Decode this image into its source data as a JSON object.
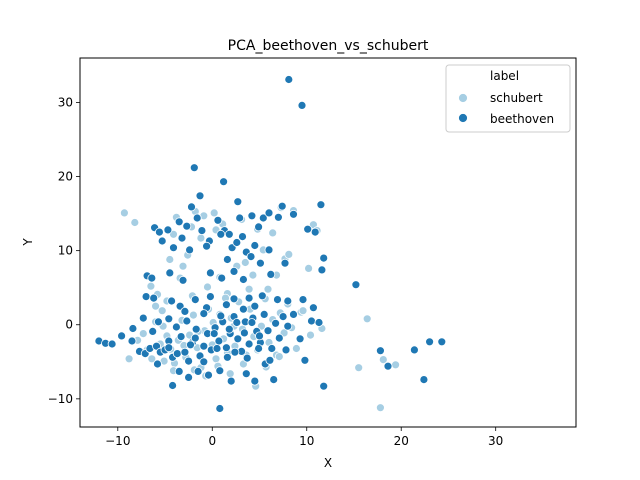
{
  "chart_data": {
    "type": "scatter",
    "title": "PCA_beethoven_vs_schubert",
    "xlabel": "X",
    "ylabel": "Y",
    "xlim": [
      -14,
      38.5
    ],
    "ylim": [
      -13.8,
      36
    ],
    "xticks": [
      -10,
      0,
      10,
      20,
      30
    ],
    "yticks": [
      -10,
      0,
      10,
      20,
      30
    ],
    "grid": false,
    "legend": {
      "title": "label",
      "placement": "top-right",
      "entries": [
        "schubert",
        "beethoven"
      ]
    },
    "series": [
      {
        "name": "schubert",
        "color": "#a6cee3",
        "points": [
          [
            -9.3,
            15.1
          ],
          [
            -8.2,
            13.8
          ],
          [
            -6.5,
            5.2
          ],
          [
            -6,
            2.5
          ],
          [
            -5.8,
            4.1
          ],
          [
            -5.2,
            -0.2
          ],
          [
            -4.8,
            3.2
          ],
          [
            -4.5,
            8.8
          ],
          [
            -4.1,
            12.2
          ],
          [
            -3.8,
            14.5
          ],
          [
            -3.4,
            6.3
          ],
          [
            -3.1,
            7.9
          ],
          [
            -2.6,
            9.4
          ],
          [
            -2.2,
            13.2
          ],
          [
            -1.8,
            15.3
          ],
          [
            -1.2,
            11.7
          ],
          [
            -0.9,
            14.7
          ],
          [
            -0.5,
            5.1
          ],
          [
            0.2,
            15.1
          ],
          [
            0.4,
            12.8
          ],
          [
            0.8,
            6.4
          ],
          [
            1.1,
            13.6
          ],
          [
            1.6,
            4.2
          ],
          [
            2.2,
            10.5
          ],
          [
            2.6,
            7.9
          ],
          [
            3.1,
            14.2
          ],
          [
            3.5,
            8.4
          ],
          [
            4.3,
            6.7
          ],
          [
            4.8,
            12.9
          ],
          [
            5.4,
            10.1
          ],
          [
            5.9,
            4.8
          ],
          [
            6.4,
            12.4
          ],
          [
            6.8,
            6.7
          ],
          [
            7.3,
            15.8
          ],
          [
            7.7,
            8.9
          ],
          [
            8.1,
            9.5
          ],
          [
            8.6,
            15.4
          ],
          [
            9.4,
            1.7
          ],
          [
            10.2,
            7.6
          ],
          [
            10.7,
            13.5
          ],
          [
            11.1,
            12.7
          ],
          [
            11.6,
            -0.5
          ],
          [
            16.4,
            0.8
          ],
          [
            15.5,
            -5.8
          ],
          [
            17.8,
            -11.2
          ],
          [
            18.1,
            -4.7
          ],
          [
            19.4,
            -5.4
          ],
          [
            -7.3,
            -1.2
          ],
          [
            -6.9,
            -3.4
          ],
          [
            -6.4,
            -4.6
          ],
          [
            -6,
            0.4
          ],
          [
            -5.5,
            -2.6
          ],
          [
            -5.1,
            -4.9
          ],
          [
            -4.8,
            -1.5
          ],
          [
            -4.4,
            -3.3
          ],
          [
            -4,
            -5.2
          ],
          [
            -3.6,
            -2.1
          ],
          [
            -3.2,
            0.6
          ],
          [
            -2.8,
            -4.4
          ],
          [
            -2.4,
            -1.4
          ],
          [
            -2,
            1.3
          ],
          [
            -1.6,
            -3.1
          ],
          [
            -1.2,
            -5.8
          ],
          [
            -0.8,
            -0.8
          ],
          [
            -0.4,
            2.1
          ],
          [
            0,
            -2.7
          ],
          [
            0.4,
            -4.6
          ],
          [
            0.8,
            1.4
          ],
          [
            1.2,
            -1.9
          ],
          [
            1.6,
            -3.8
          ],
          [
            2,
            0.9
          ],
          [
            2.4,
            -2.9
          ],
          [
            2.8,
            3.1
          ],
          [
            3.2,
            -0.6
          ],
          [
            3.6,
            -4.1
          ],
          [
            4,
            2.1
          ],
          [
            4.4,
            -1.6
          ],
          [
            4.8,
            -3.4
          ],
          [
            5.2,
            -0.2
          ],
          [
            5.6,
            3.5
          ],
          [
            6,
            -2.4
          ],
          [
            6.4,
            0.7
          ],
          [
            6.8,
            -4.1
          ],
          [
            7.2,
            1.6
          ],
          [
            7.6,
            -1.1
          ],
          [
            8,
            2.8
          ],
          [
            8.4,
            -0.4
          ],
          [
            8.9,
            -3.2
          ],
          [
            9.6,
            1.9
          ],
          [
            10.4,
            -1.4
          ],
          [
            -8.8,
            -4.6
          ],
          [
            -7.9,
            -2.1
          ],
          [
            -5.3,
            1.9
          ],
          [
            -4.1,
            -6.2
          ],
          [
            -3,
            -2.8
          ],
          [
            -1.9,
            -6.1
          ],
          [
            -0.7,
            -6.9
          ],
          [
            0.6,
            -5.6
          ],
          [
            1.9,
            -6.6
          ],
          [
            3.3,
            -5.3
          ],
          [
            4.6,
            -8.3
          ],
          [
            5.7,
            -5.7
          ],
          [
            7.1,
            -4.3
          ],
          [
            -2.1,
            3.9
          ],
          [
            1.4,
            3.6
          ],
          [
            3.9,
            4.8
          ],
          [
            -1.5,
            -0.9
          ],
          [
            0.1,
            0.3
          ],
          [
            2.3,
            -0.2
          ]
        ]
      },
      {
        "name": "beethoven",
        "color": "#1f78b4",
        "points": [
          [
            8.1,
            33.1
          ],
          [
            9.5,
            29.6
          ],
          [
            -1.9,
            21.2
          ],
          [
            1.2,
            19.3
          ],
          [
            -1.3,
            17.4
          ],
          [
            2.7,
            16.6
          ],
          [
            -2.2,
            15.9
          ],
          [
            7.4,
            16
          ],
          [
            11.5,
            16.2
          ],
          [
            -6.1,
            13.1
          ],
          [
            -5.6,
            12.5
          ],
          [
            -4.7,
            12.8
          ],
          [
            -3.5,
            13.9
          ],
          [
            -2.7,
            13.3
          ],
          [
            -1.6,
            14.4
          ],
          [
            -0.3,
            11.3
          ],
          [
            0.6,
            14.1
          ],
          [
            1.3,
            12.7
          ],
          [
            1.8,
            12.2
          ],
          [
            2.9,
            14.4
          ],
          [
            3.2,
            11.9
          ],
          [
            4.2,
            14.7
          ],
          [
            4.9,
            13.2
          ],
          [
            5.4,
            14.4
          ],
          [
            6,
            15.1
          ],
          [
            7,
            14.5
          ],
          [
            8.6,
            14.9
          ],
          [
            10.9,
            12.5
          ],
          [
            -5.3,
            11.3
          ],
          [
            -4.1,
            10.4
          ],
          [
            -3.2,
            11.7
          ],
          [
            -2.4,
            10.1
          ],
          [
            -1.1,
            12.7
          ],
          [
            -0.6,
            10.6
          ],
          [
            0.9,
            12.2
          ],
          [
            2.1,
            10.4
          ],
          [
            2.6,
            11.1
          ],
          [
            3.6,
            9.8
          ],
          [
            4.5,
            10.7
          ],
          [
            6,
            10.1
          ],
          [
            7.7,
            8.3
          ],
          [
            10.1,
            12.9
          ],
          [
            11.8,
            9
          ],
          [
            11.6,
            7.4
          ],
          [
            6.2,
            6.8
          ],
          [
            -6.9,
            6.6
          ],
          [
            -6.4,
            6.3
          ],
          [
            -4.5,
            7
          ],
          [
            -3.1,
            6
          ],
          [
            -0.2,
            7
          ],
          [
            1,
            6.3
          ],
          [
            1.6,
            8.8
          ],
          [
            2.3,
            7.2
          ],
          [
            3.3,
            6.1
          ],
          [
            4.1,
            9.2
          ],
          [
            5.1,
            8.3
          ],
          [
            -7,
            3.8
          ],
          [
            -6.2,
            3.6
          ],
          [
            -4.3,
            3.2
          ],
          [
            -3.4,
            2.5
          ],
          [
            -2.9,
            1.8
          ],
          [
            -1.8,
            3.4
          ],
          [
            -0.6,
            2.3
          ],
          [
            -0.2,
            3.8
          ],
          [
            1.5,
            2.7
          ],
          [
            2.3,
            3.5
          ],
          [
            3.3,
            2.1
          ],
          [
            3.9,
            3.6
          ],
          [
            4.5,
            2.5
          ],
          [
            5.3,
            3.9
          ],
          [
            6.9,
            3.4
          ],
          [
            8,
            3.2
          ],
          [
            9.6,
            3.4
          ],
          [
            10.7,
            2.3
          ],
          [
            15.2,
            5.4
          ],
          [
            -12,
            -2.2
          ],
          [
            -11.3,
            -2.5
          ],
          [
            -10.6,
            -2.6
          ],
          [
            -9.6,
            -1.5
          ],
          [
            -8.5,
            -2.2
          ],
          [
            -7.7,
            -3.6
          ],
          [
            -7.1,
            -3.9
          ],
          [
            -6.6,
            -3.2
          ],
          [
            -5.9,
            -2.9
          ],
          [
            -5.5,
            -3.7
          ],
          [
            -5,
            -3.4
          ],
          [
            -4.6,
            -2.2
          ],
          [
            -4.2,
            -4.4
          ],
          [
            -3.7,
            -3.9
          ],
          [
            -3.3,
            -1.6
          ],
          [
            -2.9,
            -3.7
          ],
          [
            -2.5,
            -4.9
          ],
          [
            -2.1,
            -2.4
          ],
          [
            -1.7,
            -0.6
          ],
          [
            -1.3,
            -4.2
          ],
          [
            -0.9,
            -2.9
          ],
          [
            -0.5,
            -1.2
          ],
          [
            -0.1,
            -3.4
          ],
          [
            0.3,
            -0.4
          ],
          [
            0.7,
            -2.2
          ],
          [
            1.1,
            0.4
          ],
          [
            1.5,
            -3.1
          ],
          [
            1.9,
            -1.2
          ],
          [
            2.3,
            1.1
          ],
          [
            2.7,
            -1.9
          ],
          [
            3.1,
            -3.6
          ],
          [
            3.5,
            0.4
          ],
          [
            3.9,
            -2.6
          ],
          [
            4.3,
            0.9
          ],
          [
            4.7,
            -0.9
          ],
          [
            5.1,
            -2.4
          ],
          [
            5.5,
            1.4
          ],
          [
            5.9,
            -0.8
          ],
          [
            6.3,
            -3.2
          ],
          [
            6.7,
            0.2
          ],
          [
            7.1,
            -1.8
          ],
          [
            7.5,
            1.1
          ],
          [
            8,
            -0.2
          ],
          [
            8.6,
            1.4
          ],
          [
            9.3,
            -1.9
          ],
          [
            9.8,
            -4.8
          ],
          [
            10.5,
            0.5
          ],
          [
            11.3,
            0.3
          ],
          [
            -8.4,
            -0.5
          ],
          [
            -7.3,
            0.9
          ],
          [
            -6.3,
            -0.9
          ],
          [
            -5.7,
            0.4
          ],
          [
            -4.6,
            0.8
          ],
          [
            -3.8,
            -0.3
          ],
          [
            -2.7,
            0.5
          ],
          [
            -1.8,
            -1.8
          ],
          [
            -0.9,
            1.5
          ],
          [
            0.2,
            -1.2
          ],
          [
            0.9,
            1.2
          ],
          [
            1.8,
            -0.6
          ],
          [
            2.6,
            0.3
          ],
          [
            3.4,
            -1.1
          ],
          [
            4.2,
            0.3
          ],
          [
            5,
            -1.5
          ],
          [
            -5.8,
            -5.3
          ],
          [
            -4.2,
            -8.2
          ],
          [
            -3.5,
            -6.3
          ],
          [
            -2.5,
            -7.1
          ],
          [
            -1.5,
            -6.3
          ],
          [
            -0.4,
            -6.8
          ],
          [
            0.8,
            -6.2
          ],
          [
            0.8,
            -11.3
          ],
          [
            2,
            -7.6
          ],
          [
            3.6,
            -6.6
          ],
          [
            4.5,
            -7.6
          ],
          [
            5.6,
            -5.3
          ],
          [
            6.5,
            -7.4
          ],
          [
            11.8,
            -8.3
          ],
          [
            17.8,
            -3.5
          ],
          [
            18.6,
            -5.6
          ],
          [
            21.4,
            -3.4
          ],
          [
            22.4,
            -7.4
          ],
          [
            23,
            -2.3
          ],
          [
            24.3,
            -2.3
          ],
          [
            -4.6,
            -3.1
          ],
          [
            -2.3,
            -2.7
          ],
          [
            -0.9,
            -5
          ],
          [
            0.5,
            -3.2
          ],
          [
            1.6,
            -4.4
          ],
          [
            2.4,
            -3.7
          ],
          [
            3.7,
            -4.5
          ],
          [
            4.9,
            -3.2
          ],
          [
            6.1,
            -4.8
          ],
          [
            7.8,
            -3.4
          ]
        ]
      }
    ]
  }
}
